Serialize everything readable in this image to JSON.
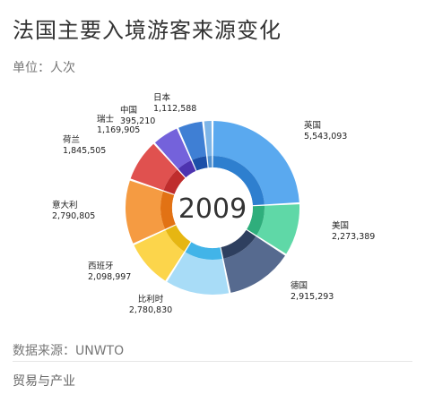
{
  "header": {
    "title": "法国主要入境游客来源变化",
    "unit": "单位：人次"
  },
  "footer": {
    "source": "数据来源：UNWTO",
    "category": "贸易与产业"
  },
  "chart_data": {
    "type": "pie",
    "variant": "donut",
    "center_label": "2009",
    "categories": [
      "英国",
      "美国",
      "德国",
      "比利时",
      "西班牙",
      "意大利",
      "荷兰",
      "瑞士",
      "日本",
      "中国"
    ],
    "values": [
      5543093,
      2273389,
      2915293,
      2780830,
      2098997,
      2790805,
      1845505,
      1169905,
      1112588,
      395210
    ],
    "value_labels": [
      "5,543,093",
      "2,273,389",
      "2,915,293",
      "2,780,830",
      "2,098,997",
      "2,790,805",
      "1,845,505",
      "1,169,905",
      "1,112,588",
      "395,210"
    ],
    "colors": [
      "#5aa9ef",
      "#5fd8a7",
      "#566a8f",
      "#a8dcf7",
      "#fcd54b",
      "#f59b42",
      "#e0514f",
      "#7462db",
      "#3f7fd4",
      "#7db5e8"
    ],
    "inner_colors": [
      "#2e7fcf",
      "#2fae7c",
      "#2e3f5f",
      "#42b4e8",
      "#e6b612",
      "#e27214",
      "#bf2d2d",
      "#4d33b0",
      "#1b4fa8",
      "#4f8fcf"
    ]
  }
}
